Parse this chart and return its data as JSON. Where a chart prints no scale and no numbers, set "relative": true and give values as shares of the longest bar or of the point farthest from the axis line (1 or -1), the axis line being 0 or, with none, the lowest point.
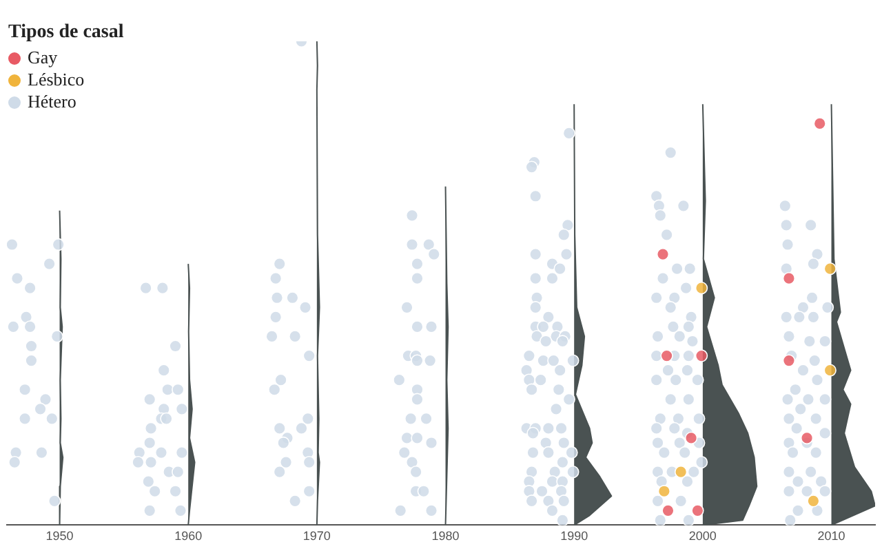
{
  "chart_data": {
    "type": "scatter",
    "relative": true,
    "legend": "top left",
    "legend_title": "Tipos de casal",
    "marker": "circle",
    "grid": false,
    "xlim": [
      1945.9,
      2013.4
    ],
    "xticks": [
      1950,
      1960,
      1970,
      1980,
      1990,
      2000,
      2010
    ],
    "series": [
      {
        "name": "Gay",
        "color": "#e85a64",
        "x": [
          1996.9,
          1997.2,
          1999.9,
          1999.1,
          1997.3,
          1999.6,
          2009.1,
          2006.7,
          2006.7,
          2008.1
        ],
        "values": [
          0.56,
          0.35,
          0.35,
          0.18,
          0.03,
          0.03,
          0.83,
          0.51,
          0.34,
          0.18
        ]
      },
      {
        "name": "Lésbico",
        "color": "#f0b43c",
        "x": [
          1999.9,
          1998.3,
          1997.0,
          2009.9,
          2009.9,
          2008.6
        ],
        "values": [
          0.49,
          0.11,
          0.07,
          0.53,
          0.32,
          0.05
        ]
      },
      {
        "name": "Hétero",
        "color": "#cfdbe8",
        "x": [
          1946.3,
          1949.9,
          1949.2,
          1946.7,
          1947.7,
          1947.4,
          1946.4,
          1947.7,
          1949.8,
          1947.8,
          1947.8,
          1947.3,
          1948.9,
          1948.5,
          1947.3,
          1949.4,
          1946.6,
          1948.6,
          1946.5,
          1949.6,
          1956.7,
          1958.0,
          1959.0,
          1958.1,
          1958.4,
          1959.2,
          1957.0,
          1958.1,
          1959.5,
          1957.9,
          1958.3,
          1957.1,
          1957.0,
          1956.2,
          1957.9,
          1959.5,
          1956.1,
          1957.1,
          1958.5,
          1959.2,
          1956.9,
          1957.4,
          1959.0,
          1957.0,
          1959.4,
          1968.8,
          1967.1,
          1966.8,
          1966.9,
          1968.1,
          1969.1,
          1966.8,
          1966.5,
          1968.3,
          1969.4,
          1967.2,
          1966.7,
          1969.3,
          1967.1,
          1968.8,
          1967.7,
          1967.4,
          1969.3,
          1967.6,
          1967.1,
          1969.4,
          1969.4,
          1968.3,
          1977.4,
          1977.4,
          1978.7,
          1979.1,
          1977.8,
          1977.8,
          1977.0,
          1977.8,
          1978.9,
          1977.1,
          1977.7,
          1977.8,
          1978.8,
          1976.4,
          1977.8,
          1977.8,
          1977.3,
          1978.5,
          1977.0,
          1977.8,
          1978.9,
          1976.8,
          1977.4,
          1977.7,
          1977.7,
          1978.3,
          1976.5,
          1978.9,
          1989.6,
          1986.9,
          1986.7,
          1987.0,
          1989.5,
          1989.2,
          1987.0,
          1989.4,
          1988.3,
          1988.9,
          1987.0,
          1988.3,
          1987.1,
          1987.0,
          1988.0,
          1987.0,
          1987.6,
          1988.7,
          1987.1,
          1988.6,
          1989.3,
          1987.8,
          1989.1,
          1986.5,
          1987.6,
          1988.4,
          1989.9,
          1986.3,
          1988.9,
          1986.5,
          1987.4,
          1986.7,
          1988.8,
          1989.6,
          1988.6,
          1986.3,
          1987.0,
          1988.0,
          1989.0,
          1986.8,
          1987.8,
          1989.2,
          1986.8,
          1988.0,
          1989.8,
          1989.1,
          1986.7,
          1988.5,
          1989.9,
          1986.5,
          1988.3,
          1989.1,
          1986.5,
          1987.5,
          1989.0,
          1986.7,
          1988.0,
          1989.2,
          1988.3,
          1989.1,
          1997.5,
          1996.4,
          1996.6,
          1998.5,
          1996.7,
          1997.2,
          1998.0,
          1999.0,
          1996.9,
          1998.7,
          1996.4,
          1997.8,
          1997.5,
          1999.1,
          1997.7,
          1998.9,
          1996.5,
          1998.2,
          1999.2,
          1996.4,
          1997.8,
          1998.9,
          1997.3,
          1998.8,
          1996.4,
          1997.9,
          1999.6,
          1997.5,
          1998.9,
          1996.7,
          1998.1,
          1999.7,
          1996.4,
          1997.8,
          1998.8,
          1996.5,
          1998.2,
          1999.7,
          1997.0,
          1998.6,
          1999.9,
          1996.5,
          1997.6,
          1999.3,
          1996.8,
          1998.8,
          1996.5,
          1998.3,
          1996.7,
          1998.9,
          2006.4,
          2008.4,
          2006.5,
          2006.6,
          2008.9,
          2006.5,
          2008.6,
          2008.5,
          2007.8,
          2009.7,
          2006.5,
          2007.5,
          2008.6,
          2006.7,
          2008.3,
          2009.5,
          2006.9,
          2008.7,
          2007.8,
          2008.9,
          2007.2,
          2006.6,
          2008.2,
          2009.5,
          2007.6,
          2006.7,
          2008.8,
          2007.3,
          2009.5,
          2006.7,
          2008.1,
          2007.0,
          2008.8,
          2006.7,
          2008.4,
          2007.4,
          2009.2,
          2006.7,
          2008.1,
          2009.5,
          2007.4,
          2008.9,
          2006.8
        ],
        "values": [
          0.58,
          0.58,
          0.54,
          0.51,
          0.49,
          0.43,
          0.41,
          0.41,
          0.39,
          0.37,
          0.34,
          0.28,
          0.26,
          0.24,
          0.22,
          0.22,
          0.15,
          0.15,
          0.13,
          0.05,
          0.49,
          0.49,
          0.37,
          0.32,
          0.28,
          0.28,
          0.26,
          0.24,
          0.24,
          0.22,
          0.22,
          0.2,
          0.17,
          0.15,
          0.15,
          0.15,
          0.13,
          0.13,
          0.11,
          0.11,
          0.09,
          0.07,
          0.07,
          0.03,
          0.03,
          1,
          0.54,
          0.51,
          0.47,
          0.47,
          0.45,
          0.43,
          0.39,
          0.39,
          0.35,
          0.3,
          0.28,
          0.22,
          0.2,
          0.2,
          0.18,
          0.17,
          0.15,
          0.13,
          0.11,
          0.13,
          0.07,
          0.05,
          0.64,
          0.58,
          0.58,
          0.56,
          0.54,
          0.51,
          0.45,
          0.41,
          0.41,
          0.35,
          0.35,
          0.34,
          0.34,
          0.3,
          0.28,
          0.26,
          0.22,
          0.22,
          0.18,
          0.18,
          0.17,
          0.15,
          0.13,
          0.11,
          0.07,
          0.07,
          0.03,
          0.03,
          0.81,
          0.75,
          0.74,
          0.68,
          0.62,
          0.6,
          0.56,
          0.56,
          0.54,
          0.53,
          0.51,
          0.51,
          0.47,
          0.45,
          0.43,
          0.41,
          0.41,
          0.41,
          0.39,
          0.39,
          0.39,
          0.38,
          0.38,
          0.35,
          0.34,
          0.34,
          0.34,
          0.32,
          0.32,
          0.3,
          0.3,
          0.28,
          0.28,
          0.26,
          0.24,
          0.2,
          0.2,
          0.2,
          0.2,
          0.19,
          0.17,
          0.17,
          0.15,
          0.15,
          0.15,
          0.13,
          0.11,
          0.11,
          0.11,
          0.09,
          0.09,
          0.09,
          0.07,
          0.07,
          0.07,
          0.05,
          0.05,
          0.05,
          0.03,
          0.01,
          0.77,
          0.68,
          0.66,
          0.66,
          0.64,
          0.6,
          0.53,
          0.53,
          0.51,
          0.49,
          0.47,
          0.47,
          0.45,
          0.43,
          0.41,
          0.41,
          0.39,
          0.39,
          0.38,
          0.35,
          0.35,
          0.35,
          0.32,
          0.32,
          0.3,
          0.3,
          0.3,
          0.26,
          0.26,
          0.22,
          0.22,
          0.22,
          0.2,
          0.2,
          0.19,
          0.17,
          0.17,
          0.17,
          0.15,
          0.15,
          0.13,
          0.11,
          0.11,
          0.11,
          0.09,
          0.09,
          0.05,
          0.05,
          0.01,
          0.01,
          0.66,
          0.62,
          0.62,
          0.58,
          0.56,
          0.53,
          0.54,
          0.47,
          0.45,
          0.45,
          0.43,
          0.43,
          0.43,
          0.39,
          0.38,
          0.38,
          0.35,
          0.34,
          0.32,
          0.3,
          0.28,
          0.26,
          0.26,
          0.26,
          0.24,
          0.22,
          0.22,
          0.2,
          0.19,
          0.17,
          0.17,
          0.15,
          0.15,
          0.11,
          0.11,
          0.09,
          0.09,
          0.07,
          0.07,
          0.07,
          0.03,
          0.03,
          0.01
        ]
      },
      {
        "type": "area",
        "marker": "none",
        "color": "#4a5252",
        "x": [
          1950,
          1950.1,
          1950.05,
          1950.2,
          1950.05,
          1950.1,
          1950.05,
          1950.25,
          1950.05,
          1950
        ],
        "values": [
          0.65,
          0.55,
          0.45,
          0.41,
          0.3,
          0.22,
          0.17,
          0.14,
          0.08,
          0
        ]
      },
      {
        "type": "area",
        "marker": "none",
        "color": "#4a5252",
        "x": [
          1960,
          1960.1,
          1960.03,
          1960.1,
          1960.3,
          1960.1,
          1960.5,
          1960.3,
          1960.1,
          1960
        ],
        "values": [
          0.54,
          0.49,
          0.4,
          0.3,
          0.24,
          0.18,
          0.13,
          0.08,
          0.03,
          0
        ]
      },
      {
        "type": "area",
        "marker": "none",
        "color": "#4a5252",
        "x": [
          1970,
          1970.05,
          1970,
          1970.05,
          1970.2,
          1970.05,
          1970.15,
          1970.1,
          1970.2,
          1970.05,
          1970
        ],
        "values": [
          1,
          0.95,
          0.9,
          0.6,
          0.45,
          0.35,
          0.22,
          0.15,
          0.13,
          0.05,
          0
        ]
      },
      {
        "type": "area",
        "marker": "none",
        "color": "#4a5252",
        "x": [
          1980,
          1980.1,
          1980.2,
          1980.1,
          1980.2,
          1980.1,
          1980
        ],
        "values": [
          0.7,
          0.5,
          0.41,
          0.3,
          0.2,
          0.1,
          0
        ]
      },
      {
        "type": "area",
        "marker": "none",
        "color": "#4a5252",
        "x": [
          1990,
          1990.05,
          1990.2,
          1990.8,
          1990.6,
          1990.1,
          1991.2,
          1991.4,
          1990.9,
          1992.0,
          1992.9,
          1991.2,
          1990
        ],
        "values": [
          0.87,
          0.6,
          0.45,
          0.39,
          0.33,
          0.27,
          0.2,
          0.17,
          0.14,
          0.1,
          0.06,
          0.02,
          0
        ]
      },
      {
        "type": "area",
        "marker": "none",
        "color": "#4a5252",
        "x": [
          2000,
          2000.2,
          2000.05,
          2000.9,
          2000.3,
          2001.2,
          2001.5,
          2002.8,
          2003.5,
          2004.0,
          2004.2,
          2003.6,
          2003.1,
          2000
        ],
        "values": [
          0.87,
          0.67,
          0.55,
          0.47,
          0.41,
          0.33,
          0.29,
          0.23,
          0.19,
          0.14,
          0.08,
          0.04,
          0.01,
          0
        ]
      },
      {
        "type": "area",
        "marker": "none",
        "color": "#4a5252",
        "x": [
          2010,
          2010.2,
          2010.7,
          2010.4,
          2011.5,
          2010.9,
          2011.5,
          2011.0,
          2011.8,
          2013.1,
          2013.4,
          2010
        ],
        "values": [
          0.87,
          0.55,
          0.44,
          0.42,
          0.32,
          0.28,
          0.25,
          0.19,
          0.12,
          0.07,
          0.04,
          0
        ]
      }
    ]
  }
}
